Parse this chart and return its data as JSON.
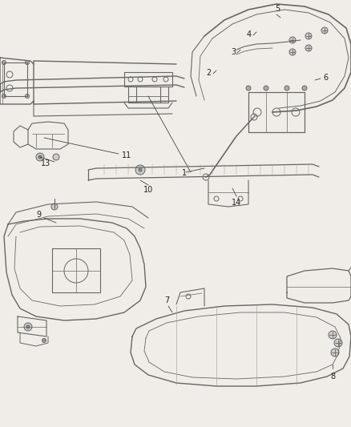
{
  "background_color": "#f0ede8",
  "fig_width": 4.38,
  "fig_height": 5.33,
  "dpi": 100
}
